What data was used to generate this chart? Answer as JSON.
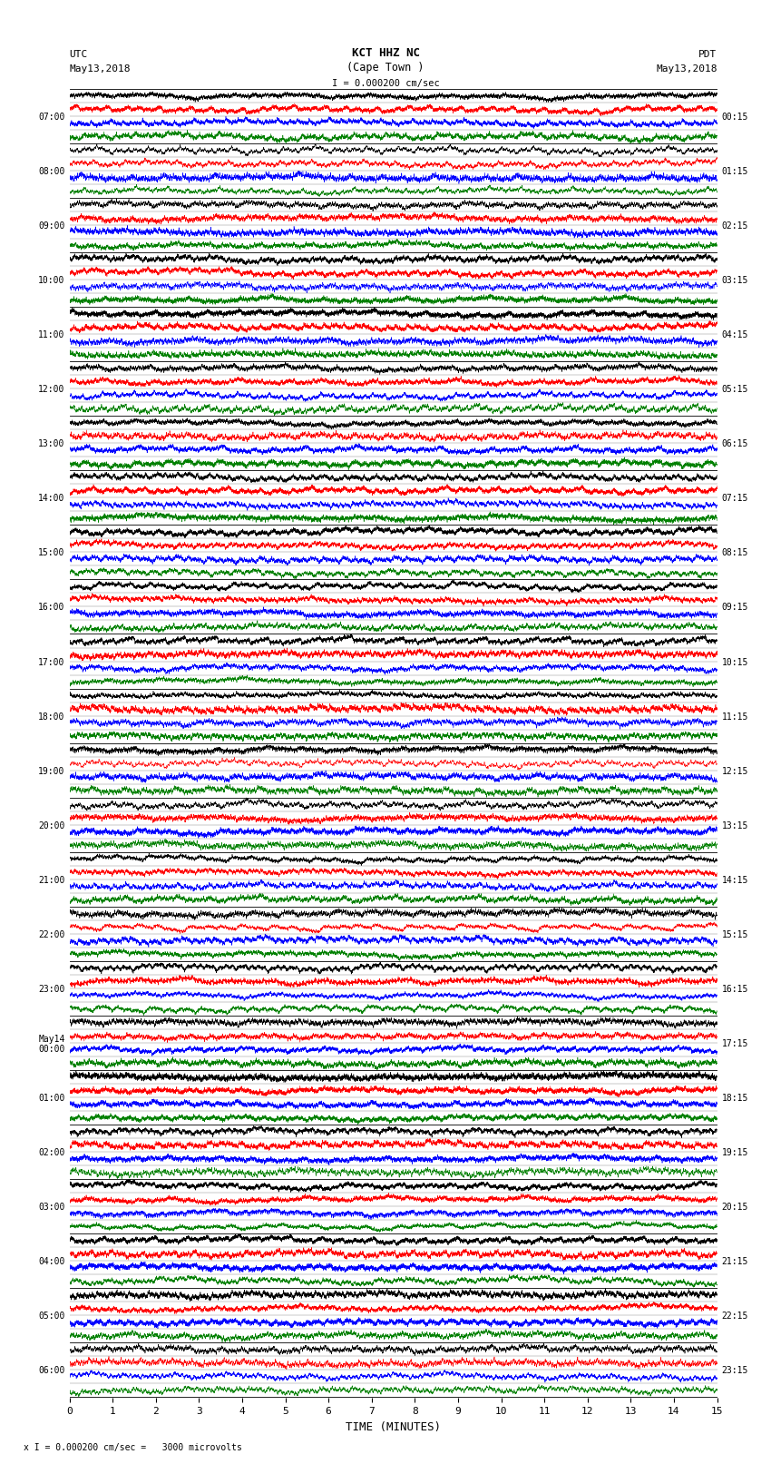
{
  "title_line1": "KCT HHZ NC",
  "title_line2": "(Cape Town )",
  "scale_text": "I = 0.000200 cm/sec",
  "left_label_top": "UTC",
  "left_label_date": "May13,2018",
  "right_label_top": "PDT",
  "right_label_date": "May13,2018",
  "bottom_note": "x I = 0.000200 cm/sec =   3000 microvolts",
  "xlabel": "TIME (MINUTES)",
  "utc_times": [
    "07:00",
    "08:00",
    "09:00",
    "10:00",
    "11:00",
    "12:00",
    "13:00",
    "14:00",
    "15:00",
    "16:00",
    "17:00",
    "18:00",
    "19:00",
    "20:00",
    "21:00",
    "22:00",
    "23:00",
    "May14\n00:00",
    "01:00",
    "02:00",
    "03:00",
    "04:00",
    "05:00",
    "06:00"
  ],
  "pdt_times": [
    "00:15",
    "01:15",
    "02:15",
    "03:15",
    "04:15",
    "05:15",
    "06:15",
    "07:15",
    "08:15",
    "09:15",
    "10:15",
    "11:15",
    "12:15",
    "13:15",
    "14:15",
    "15:15",
    "16:15",
    "17:15",
    "18:15",
    "19:15",
    "20:15",
    "21:15",
    "22:15",
    "23:15"
  ],
  "n_rows": 24,
  "n_cols": 6000,
  "time_min": 0,
  "time_max": 15,
  "background_color": "white",
  "sub_colors": [
    "black",
    "red",
    "blue",
    "green"
  ],
  "seed": 42,
  "fig_width": 8.5,
  "fig_height": 16.13,
  "dpi": 100
}
